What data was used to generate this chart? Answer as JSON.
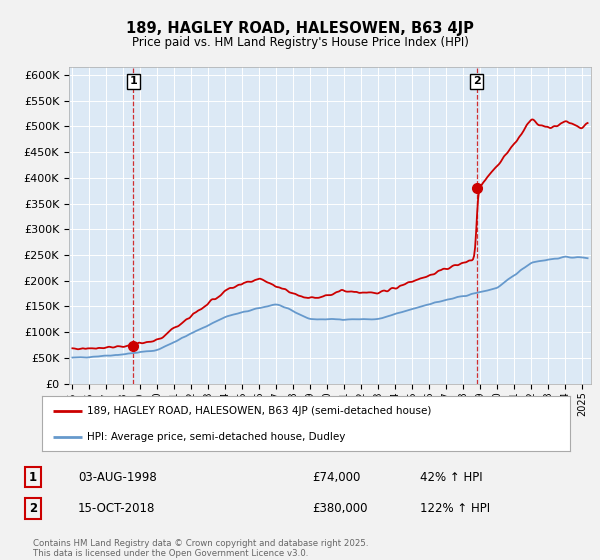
{
  "title1": "189, HAGLEY ROAD, HALESOWEN, B63 4JP",
  "title2": "Price paid vs. HM Land Registry's House Price Index (HPI)",
  "ylabel_ticks": [
    "£0",
    "£50K",
    "£100K",
    "£150K",
    "£200K",
    "£250K",
    "£300K",
    "£350K",
    "£400K",
    "£450K",
    "£500K",
    "£550K",
    "£600K"
  ],
  "ytick_vals": [
    0,
    50000,
    100000,
    150000,
    200000,
    250000,
    300000,
    350000,
    400000,
    450000,
    500000,
    550000,
    600000
  ],
  "ylim": [
    0,
    615000
  ],
  "xlim_start": 1994.8,
  "xlim_end": 2025.5,
  "purchase1": {
    "year": 1998.58,
    "price": 74000,
    "label": "1"
  },
  "purchase2": {
    "year": 2018.78,
    "price": 380000,
    "label": "2"
  },
  "legend_line1": "189, HAGLEY ROAD, HALESOWEN, B63 4JP (semi-detached house)",
  "legend_line2": "HPI: Average price, semi-detached house, Dudley",
  "table_row1": [
    "1",
    "03-AUG-1998",
    "£74,000",
    "42% ↑ HPI"
  ],
  "table_row2": [
    "2",
    "15-OCT-2018",
    "£380,000",
    "122% ↑ HPI"
  ],
  "footer": "Contains HM Land Registry data © Crown copyright and database right 2025.\nThis data is licensed under the Open Government Licence v3.0.",
  "line_color_red": "#cc0000",
  "line_color_blue": "#6699cc",
  "bg_color": "#f2f2f2",
  "plot_bg": "#dce9f5",
  "grid_color": "#ffffff"
}
